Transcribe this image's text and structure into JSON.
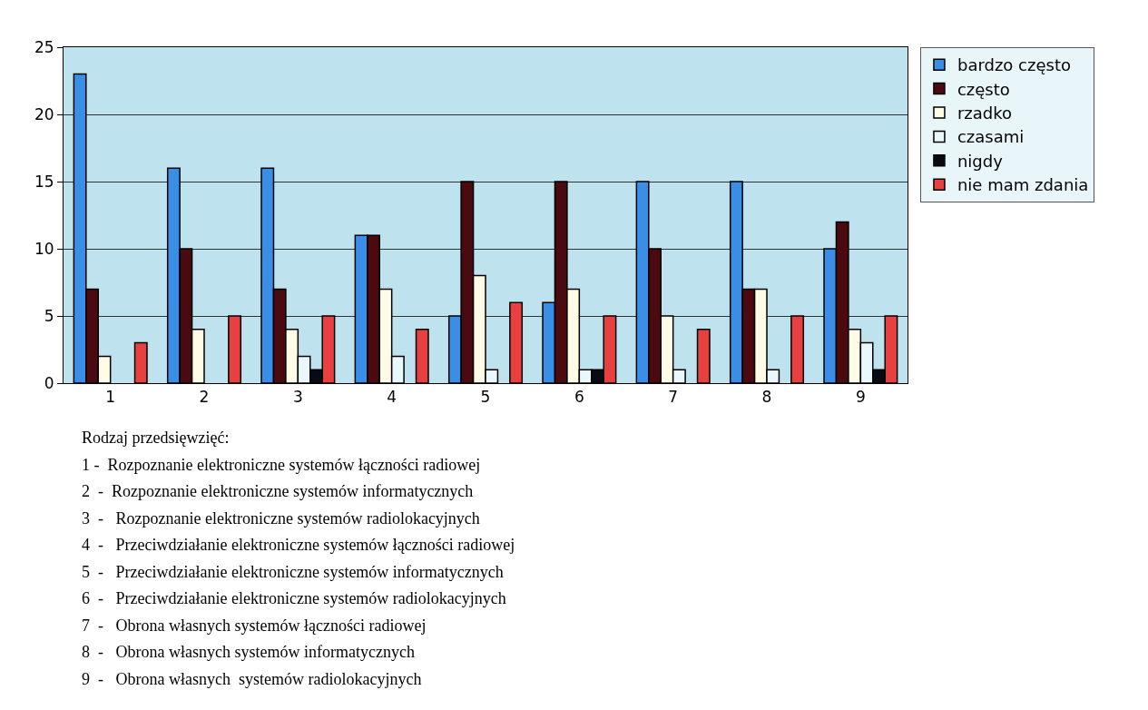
{
  "chart_data": {
    "type": "bar",
    "categories": [
      "1",
      "2",
      "3",
      "4",
      "5",
      "6",
      "7",
      "8",
      "9"
    ],
    "series": [
      {
        "name": "bardzo często",
        "color": "#3a8ee6",
        "values": [
          23,
          16,
          16,
          11,
          5,
          6,
          15,
          15,
          10
        ]
      },
      {
        "name": "często",
        "color": "#4a0a10",
        "values": [
          7,
          10,
          7,
          11,
          15,
          15,
          10,
          7,
          12
        ]
      },
      {
        "name": "rzadko",
        "color": "#fffbe6",
        "values": [
          2,
          4,
          4,
          7,
          8,
          7,
          5,
          7,
          4
        ]
      },
      {
        "name": "czasami",
        "color": "#e8f8fc",
        "values": [
          null,
          null,
          2,
          2,
          1,
          1,
          1,
          1,
          3
        ]
      },
      {
        "name": "nigdy",
        "color": "#0a0a14",
        "values": [
          null,
          null,
          1,
          null,
          null,
          1,
          null,
          null,
          1
        ]
      },
      {
        "name": "nie mam zdania",
        "color": "#e84040",
        "values": [
          3,
          5,
          5,
          4,
          6,
          5,
          4,
          5,
          5
        ]
      }
    ],
    "ylim": [
      0,
      25
    ],
    "yticks": [
      0,
      5,
      10,
      15,
      20,
      25
    ],
    "grid": "y",
    "legend": "top right",
    "annotations": [
      "Rodzaj przedsięwzięć:",
      "1 -  Rozpoznanie elektroniczne systemów łączności radiowej",
      "2  -  Rozpoznanie elektroniczne systemów informatycznych",
      "3  -   Rozpoznanie elektroniczne systemów radiolokacyjnych",
      "4  -   Przeciwdziałanie elektroniczne systemów łączności radiowej",
      "5  -   Przeciwdziałanie elektroniczne systemów informatycznych",
      "6  -   Przeciwdziałanie elektroniczne systemów radiolokacyjnych",
      "7  -   Obrona własnych systemów łączności radiowej",
      "8  -   Obrona własnych systemów informatycznych",
      "9  -   Obrona własnych  systemów radiolokacyjnych"
    ]
  }
}
